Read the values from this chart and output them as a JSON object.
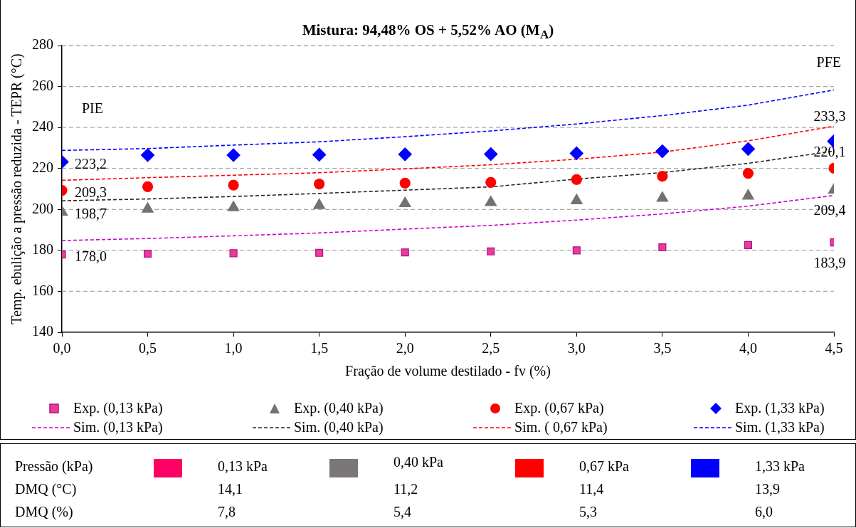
{
  "chart_data": [
    {
      "type": "scatter",
      "title": "Mistura: 94,48% OS + 5,52% AO (M$_{A}$)",
      "xlabel": "Fração de volume destilado - fv (%)",
      "ylabel": "Temp. ebulição a pressão reduzida - TEPR (°C)",
      "x": [
        0,
        0.5,
        1,
        1.5,
        2,
        2.5,
        3,
        3.5,
        4,
        4.5
      ],
      "xlim": [
        0,
        4.5
      ],
      "xticks": [
        {
          "value": 0,
          "label": "0,0"
        },
        {
          "value": 0.5,
          "label": "0,5"
        },
        {
          "value": 1,
          "label": "1,0"
        },
        {
          "value": 1.5,
          "label": "1,5"
        },
        {
          "value": 2,
          "label": "2,0"
        },
        {
          "value": 2.5,
          "label": "2,5"
        },
        {
          "value": 3,
          "label": "3,0"
        },
        {
          "value": 3.5,
          "label": "3,5"
        },
        {
          "value": 4,
          "label": "4,0"
        },
        {
          "value": 4.5,
          "label": "4,5"
        }
      ],
      "ylim": [
        140,
        280
      ],
      "yticks": [
        140,
        160,
        180,
        200,
        220,
        240,
        260,
        280
      ],
      "grid": "y",
      "legend": "bottom",
      "annotations": [
        "PIE",
        "PFE"
      ],
      "series": [
        {
          "name": "Exp. (0,13 kPa)",
          "type": "scatter",
          "marker": "square",
          "color": "#e83c9c",
          "values": [
            178.0,
            178.4,
            178.6,
            178.8,
            179.0,
            179.5,
            180.0,
            181.5,
            182.6,
            183.9
          ],
          "value_labels": [
            "178,0",
            null,
            null,
            null,
            null,
            null,
            null,
            null,
            null,
            "183,9"
          ]
        },
        {
          "name": "Exp. (0,40 kPa)",
          "type": "scatter",
          "marker": "triangle",
          "color": "#767171",
          "values": [
            198.7,
            200.2,
            200.9,
            202.0,
            202.9,
            203.4,
            204.3,
            205.5,
            206.6,
            209.4
          ],
          "value_labels": [
            "198,7",
            null,
            null,
            null,
            null,
            null,
            null,
            null,
            null,
            "209,4"
          ]
        },
        {
          "name": "Exp. (0,67 kPa)",
          "type": "scatter",
          "marker": "circle",
          "color": "#ff0000",
          "values": [
            209.3,
            211.1,
            211.9,
            212.4,
            212.8,
            213.2,
            214.6,
            216.2,
            217.6,
            220.1
          ],
          "value_labels": [
            "209,3",
            null,
            null,
            null,
            null,
            null,
            null,
            null,
            null,
            "220,1"
          ]
        },
        {
          "name": "Exp. (1,33 kPa)",
          "type": "scatter",
          "marker": "diamond",
          "color": "#0000ff",
          "values": [
            223.2,
            226.5,
            226.5,
            226.7,
            226.9,
            227.0,
            227.4,
            228.4,
            229.5,
            233.3
          ],
          "value_labels": [
            "223,2",
            null,
            null,
            null,
            null,
            null,
            null,
            null,
            null,
            "233,3"
          ]
        },
        {
          "name": "Sim. (0,13 kPa)",
          "type": "line",
          "marker": "none",
          "line_style": "dashed",
          "color": "#cc00cc",
          "values": [
            184.8,
            185.8,
            187.1,
            188.5,
            190.4,
            192.2,
            194.8,
            197.8,
            201.6,
            206.8
          ]
        },
        {
          "name": "Sim. (0,40 kPa)",
          "type": "line",
          "marker": "none",
          "line_style": "dashed",
          "color": "#262626",
          "values": [
            204.2,
            205.1,
            206.3,
            207.8,
            209.4,
            211.0,
            214.8,
            218.0,
            222.5,
            228.5
          ]
        },
        {
          "name": "Sim. ( 0,67 kPa)",
          "type": "line",
          "marker": "none",
          "line_style": "dashed",
          "color": "#ff0000",
          "values": [
            214.2,
            215.5,
            216.7,
            217.9,
            219.8,
            221.8,
            224.5,
            228.0,
            233.5,
            240.6
          ]
        },
        {
          "name": "Sim. (1,33 kPa)",
          "type": "line",
          "marker": "none",
          "line_style": "dashed",
          "color": "#0000ff",
          "values": [
            228.8,
            229.7,
            231.4,
            233.0,
            235.5,
            238.3,
            241.7,
            245.8,
            250.9,
            258.3
          ]
        }
      ]
    },
    {
      "type": "other",
      "y_categories": [
        "Pressão (kPa)",
        "DMQ (°C)",
        "DMQ (%)"
      ],
      "colors": [
        "#ff0066",
        "#7b7776",
        "#ff0000",
        "#0000ff"
      ],
      "cell_labels": [
        [
          "0,13 kPa",
          "0,40 kPa",
          "0,67 kPa",
          "1,33 kPa"
        ],
        [
          "14,1",
          "11,2",
          "11,4",
          "13,9"
        ],
        [
          "7,8",
          "5,4",
          "5,3",
          "6,0"
        ]
      ]
    }
  ]
}
